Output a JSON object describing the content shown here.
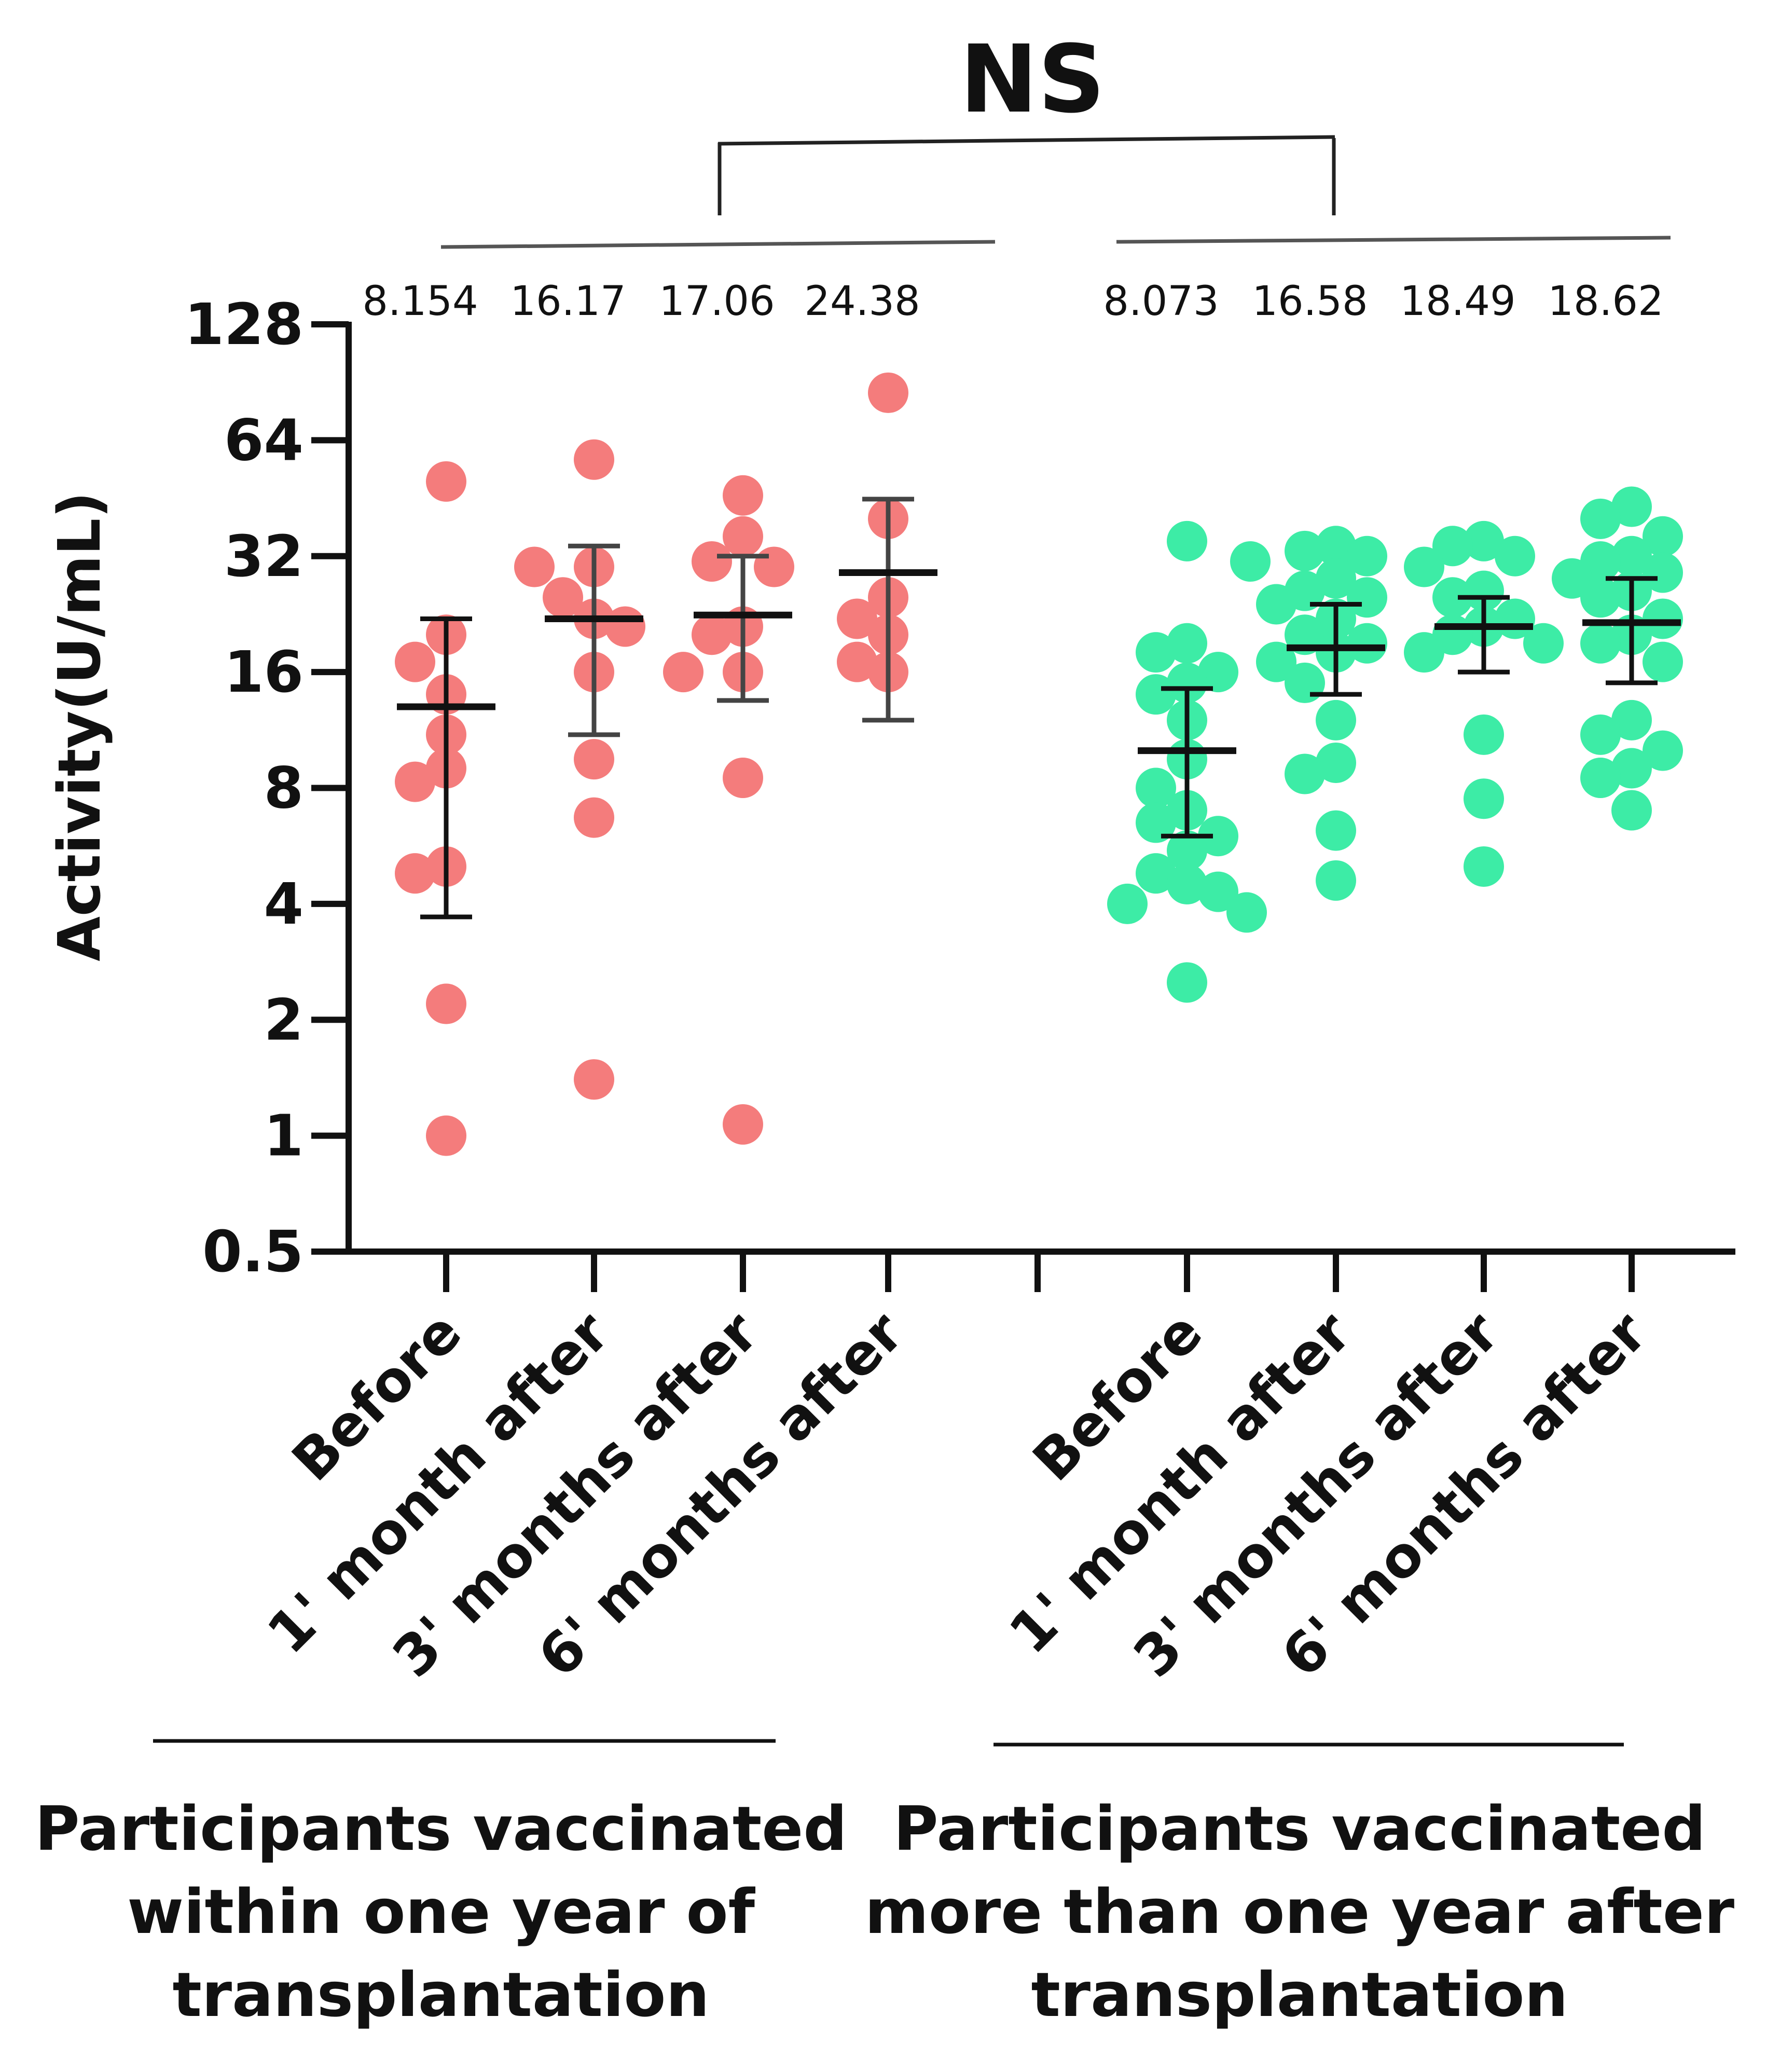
{
  "chart_data": {
    "type": "scatter",
    "title": "NS",
    "ylabel": "Activity(U/mL)",
    "xlabel": "",
    "yscale": "log2",
    "ylim": [
      0.5,
      128
    ],
    "yticks": [
      {
        "value": 128,
        "label": "128"
      },
      {
        "value": 64,
        "label": "64"
      },
      {
        "value": 32,
        "label": "32"
      },
      {
        "value": 16,
        "label": "16"
      },
      {
        "value": 8,
        "label": "8"
      },
      {
        "value": 4,
        "label": "4"
      },
      {
        "value": 2,
        "label": "2"
      },
      {
        "value": 1,
        "label": "1"
      },
      {
        "value": 0.5,
        "label": "0.5"
      }
    ],
    "groups": [
      {
        "name": "Participants vaccinated within one year of transplantation",
        "label_lines": [
          "Participants vaccinated",
          "within one year of",
          "transplantation"
        ],
        "color": "#F47C7C",
        "series": [
          {
            "name": "Before",
            "value_label": "8.154",
            "mean": 13,
            "sd_low": 3.7,
            "sd_high": 22,
            "points": [
              50,
              20,
              17,
              14,
              11,
              9,
              8.3,
              5,
              4.8,
              2.2,
              1.0
            ]
          },
          {
            "name": "1' month after",
            "value_label": "16.17",
            "mean": 22,
            "sd_low": 11,
            "sd_high": 34,
            "points": [
              57,
              30,
              30,
              25,
              22,
              21,
              16,
              9.5,
              6.7,
              1.4
            ]
          },
          {
            "name": "3' months after",
            "value_label": "17.06",
            "mean": 22.5,
            "sd_low": 13.5,
            "sd_high": 32,
            "points": [
              46,
              36,
              31,
              30,
              21,
              20,
              16,
              16,
              8.5,
              1.07
            ]
          },
          {
            "name": "6' months after",
            "value_label": "24.38",
            "mean": 29,
            "sd_low": 12,
            "sd_high": 45,
            "points": [
              85,
              40,
              25,
              22,
              20,
              17,
              16
            ]
          }
        ]
      },
      {
        "name": "Participants vaccinated more than one year after transplantation",
        "label_lines": [
          "Participants vaccinated",
          "more than one year after",
          "transplantation"
        ],
        "color": "#3DECA6",
        "series": [
          {
            "name": "Before",
            "value_label": "8.073",
            "mean": 10,
            "sd_low": 6,
            "sd_high": 14.5,
            "points": [
              35,
              19,
              18,
              16,
              15,
              14,
              12,
              9.5,
              8,
              7,
              6.5,
              6,
              5.5,
              4.8,
              4.5,
              4.3,
              4,
              3.8,
              2.5
            ]
          },
          {
            "name": "1' month after",
            "value_label": "16.58",
            "mean": 18.5,
            "sd_low": 14,
            "sd_high": 24,
            "points": [
              34,
              33,
              32,
              31,
              28,
              26,
              25,
              24,
              22,
              20,
              19,
              18,
              17,
              15,
              12,
              9.3,
              8.7,
              6.2,
              4.6
            ]
          },
          {
            "name": "3' months after",
            "value_label": "18.49",
            "mean": 21,
            "sd_low": 16,
            "sd_high": 25,
            "points": [
              35,
              34,
              32,
              30,
              26,
              25,
              22,
              21,
              20,
              19,
              18,
              11,
              7.5,
              5
            ]
          },
          {
            "name": "6' months after",
            "value_label": "18.62",
            "mean": 21.5,
            "sd_low": 15,
            "sd_high": 28,
            "points": [
              43,
              40,
              36,
              32,
              31,
              29,
              28,
              26,
              25,
              22,
              20,
              19,
              17,
              12,
              11,
              10,
              9,
              8.5,
              7
            ]
          }
        ]
      }
    ]
  }
}
